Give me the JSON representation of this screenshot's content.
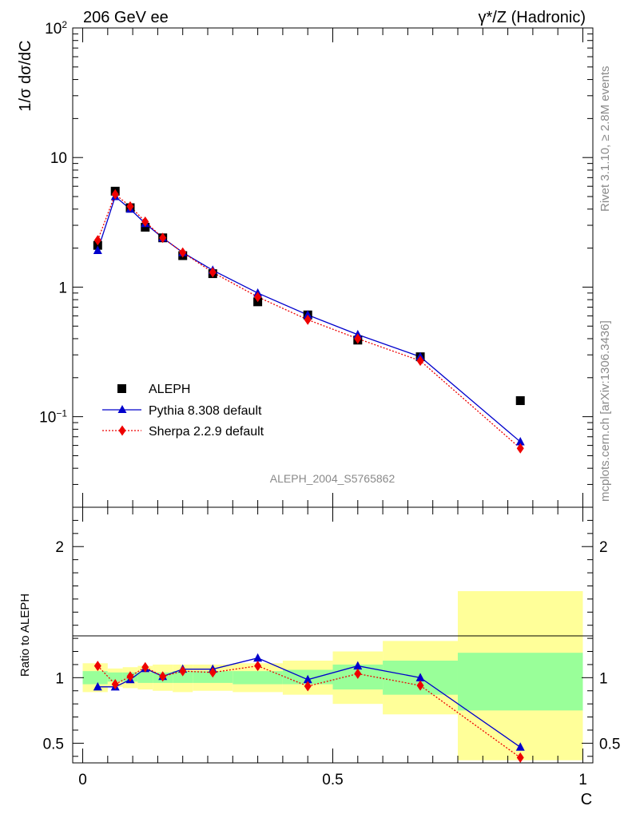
{
  "header": {
    "left_title": "206 GeV ee",
    "right_title": "γ*/Z (Hadronic)"
  },
  "side_labels": {
    "rivet": "Rivet 3.1.10, ≥ 2.8M events",
    "mcplots": "mcplots.cern.ch [arXiv:1306.3436]"
  },
  "chart_data": [
    {
      "type": "line",
      "panel": "main",
      "ylabel": "1/σ  dσ/dC",
      "yscale": "log",
      "ylim": [
        0.02,
        100
      ],
      "xlim": [
        -0.02,
        1.02
      ],
      "yticklabels": [
        "10^-1",
        "1",
        "10",
        "10^2"
      ],
      "watermark": "ALEPH_2004_S5765862",
      "legend_position": "lower-left",
      "series": [
        {
          "name": "ALEPH",
          "color": "#000000",
          "marker": "square",
          "x": [
            0.03,
            0.065,
            0.095,
            0.125,
            0.16,
            0.2,
            0.26,
            0.35,
            0.45,
            0.55,
            0.675,
            0.875
          ],
          "values": [
            2.1,
            5.5,
            4.1,
            2.9,
            2.4,
            1.75,
            1.27,
            0.77,
            0.61,
            0.39,
            0.29,
            0.133
          ]
        },
        {
          "name": "Pythia 8.308 default",
          "color": "#0000cc",
          "marker": "triangle",
          "line": "solid",
          "x": [
            0.03,
            0.065,
            0.095,
            0.125,
            0.16,
            0.2,
            0.26,
            0.35,
            0.45,
            0.55,
            0.675,
            0.875
          ],
          "values": [
            1.92,
            5.0,
            4.0,
            3.1,
            2.4,
            1.85,
            1.35,
            0.9,
            0.61,
            0.43,
            0.29,
            0.064
          ]
        },
        {
          "name": "Sherpa 2.2.9 default",
          "color": "#ee0000",
          "marker": "diamond",
          "line": "dotted",
          "x": [
            0.03,
            0.065,
            0.095,
            0.125,
            0.16,
            0.2,
            0.26,
            0.35,
            0.45,
            0.55,
            0.675,
            0.875
          ],
          "values": [
            2.3,
            5.2,
            4.2,
            3.2,
            2.4,
            1.85,
            1.3,
            0.84,
            0.56,
            0.4,
            0.27,
            0.057
          ]
        }
      ]
    },
    {
      "type": "line",
      "panel": "ratio",
      "xlabel": "C",
      "ylabel": "Ratio to ALEPH",
      "ylim": [
        0.35,
        2.3
      ],
      "xlim": [
        -0.02,
        1.02
      ],
      "xticklabels": [
        "0",
        "0.5",
        "1"
      ],
      "yticklabels": [
        "0.5",
        "1",
        "2"
      ],
      "bands": {
        "edges": [
          0.0,
          0.05,
          0.08,
          0.11,
          0.14,
          0.18,
          0.22,
          0.3,
          0.4,
          0.5,
          0.6,
          0.75,
          1.0
        ],
        "green_lo": [
          0.95,
          0.97,
          0.97,
          0.96,
          0.96,
          0.96,
          0.96,
          0.95,
          0.95,
          0.91,
          0.87,
          0.75
        ],
        "green_hi": [
          1.05,
          1.04,
          1.04,
          1.04,
          1.04,
          1.05,
          1.05,
          1.05,
          1.06,
          1.1,
          1.13,
          1.19
        ],
        "yellow_lo": [
          0.89,
          0.93,
          0.92,
          0.91,
          0.9,
          0.89,
          0.9,
          0.89,
          0.87,
          0.8,
          0.72,
          0.37
        ],
        "yellow_hi": [
          1.11,
          1.07,
          1.08,
          1.09,
          1.1,
          1.1,
          1.1,
          1.11,
          1.13,
          1.2,
          1.28,
          1.66
        ],
        "green_color": "#99ff99",
        "yellow_color": "#ffff99"
      },
      "series": [
        {
          "name": "Pythia 8.308 default",
          "color": "#0000cc",
          "marker": "triangle",
          "line": "solid",
          "x": [
            0.03,
            0.065,
            0.095,
            0.125,
            0.16,
            0.2,
            0.26,
            0.35,
            0.45,
            0.55,
            0.675,
            0.875
          ],
          "values": [
            0.93,
            0.93,
            0.985,
            1.07,
            1.01,
            1.065,
            1.065,
            1.15,
            0.985,
            1.09,
            1.0,
            0.47
          ]
        },
        {
          "name": "Sherpa 2.2.9 default",
          "color": "#ee0000",
          "marker": "diamond",
          "line": "dotted",
          "x": [
            0.03,
            0.065,
            0.095,
            0.125,
            0.16,
            0.2,
            0.26,
            0.35,
            0.45,
            0.55,
            0.675,
            0.875
          ],
          "values": [
            1.09,
            0.95,
            1.01,
            1.08,
            1.01,
            1.05,
            1.04,
            1.09,
            0.935,
            1.03,
            0.94,
            0.39
          ]
        }
      ]
    }
  ]
}
